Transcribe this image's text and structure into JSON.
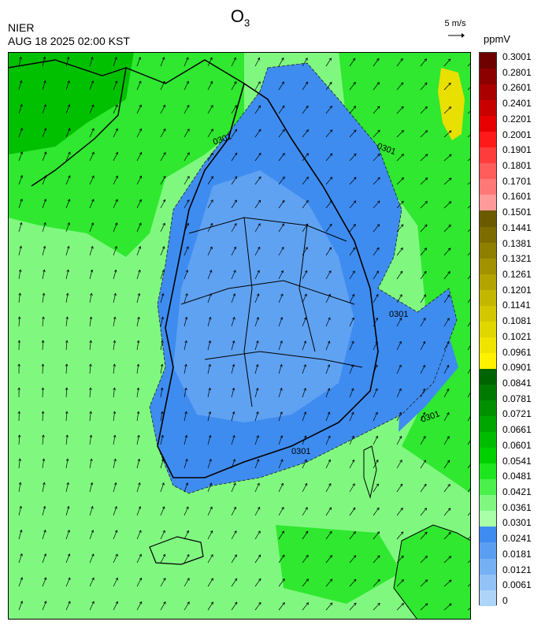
{
  "header": {
    "title_main": "O",
    "title_sub": "3",
    "agency": "NIER",
    "timestamp": "AUG 18 2025 02:00 KST",
    "wind_scale_label": "5 m/s",
    "unit": "ppmV"
  },
  "map": {
    "contour_value_label": "0301",
    "region": "Korean Peninsula (southern part) with surrounding seas",
    "layers": [
      "ozone concentration shading",
      "wind vectors",
      "coastlines",
      "administrative boundaries",
      "0.0301 ppmV contour"
    ]
  },
  "legend": {
    "ticks": [
      "0.3001",
      "0.2801",
      "0.2601",
      "0.2401",
      "0.2201",
      "0.2001",
      "0.1901",
      "0.1801",
      "0.1701",
      "0.1601",
      "0.1501",
      "0.1441",
      "0.1381",
      "0.1321",
      "0.1261",
      "0.1201",
      "0.1141",
      "0.1081",
      "0.1021",
      "0.0961",
      "0.0901",
      "0.0841",
      "0.0781",
      "0.0721",
      "0.0661",
      "0.0601",
      "0.0541",
      "0.0481",
      "0.0421",
      "0.0361",
      "0.0301",
      "0.0241",
      "0.0181",
      "0.0121",
      "0.0061",
      "0"
    ],
    "colors": [
      "#6e0000",
      "#8c0000",
      "#aa0000",
      "#c80000",
      "#e60000",
      "#ff1a1a",
      "#ff3c3c",
      "#ff5c5c",
      "#ff7878",
      "#ff9a9a",
      "#6b5a00",
      "#7d6d00",
      "#8f7f00",
      "#a29200",
      "#b3a400",
      "#c4b700",
      "#d3c800",
      "#e0d600",
      "#eee400",
      "#fff200",
      "#006400",
      "#007a00",
      "#009000",
      "#00a600",
      "#00bc00",
      "#00d000",
      "#1ee61e",
      "#4cf04c",
      "#80f880",
      "#a8ffa8",
      "#3e8cf0",
      "#5a9ef2",
      "#76b0f4",
      "#92c2f6",
      "#aed4f8"
    ]
  }
}
